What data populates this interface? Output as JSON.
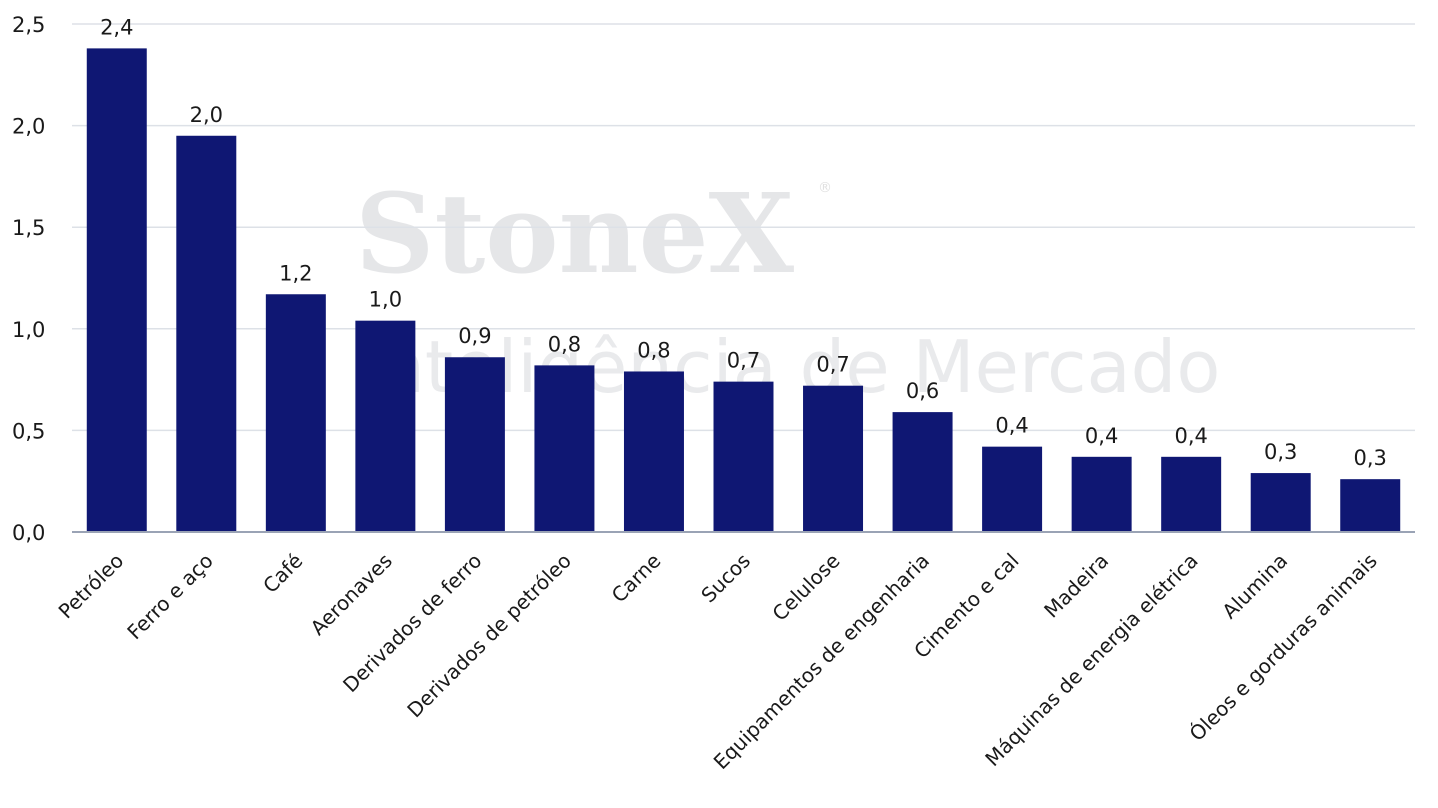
{
  "watermark": {
    "brand": "StoneX",
    "registered": "®",
    "subtitle": "Inteligência de Mercado"
  },
  "colors": {
    "bar": "#0f1773",
    "grid": "#dde1e7",
    "axis": "#9aa3b5",
    "text": "#1a1a1a"
  },
  "chart_data": {
    "type": "bar",
    "title": "",
    "xlabel": "",
    "ylabel": "",
    "ylim": [
      0,
      2.5
    ],
    "yticks": [
      "0,0",
      "0,5",
      "1,0",
      "1,5",
      "2,0",
      "2,5"
    ],
    "grid": true,
    "legend": "none",
    "categories": [
      "Petróleo",
      "Ferro e aço",
      "Café",
      "Aeronaves",
      "Derivados de ferro",
      "Derivados de petróleo",
      "Carne",
      "Sucos",
      "Celulose",
      "Equipamentos de engenharia",
      "Cimento e cal",
      "Madeira",
      "Máquinas de energia elétrica",
      "Alumina",
      "Óleos e gorduras animais"
    ],
    "values": [
      2.38,
      1.95,
      1.17,
      1.04,
      0.86,
      0.82,
      0.79,
      0.74,
      0.72,
      0.59,
      0.42,
      0.37,
      0.37,
      0.29,
      0.26
    ],
    "data_labels": [
      "2,4",
      "2,0",
      "1,2",
      "1,0",
      "0,9",
      "0,8",
      "0,8",
      "0,7",
      "0,7",
      "0,6",
      "0,4",
      "0,4",
      "0,4",
      "0,3",
      "0,3"
    ]
  }
}
